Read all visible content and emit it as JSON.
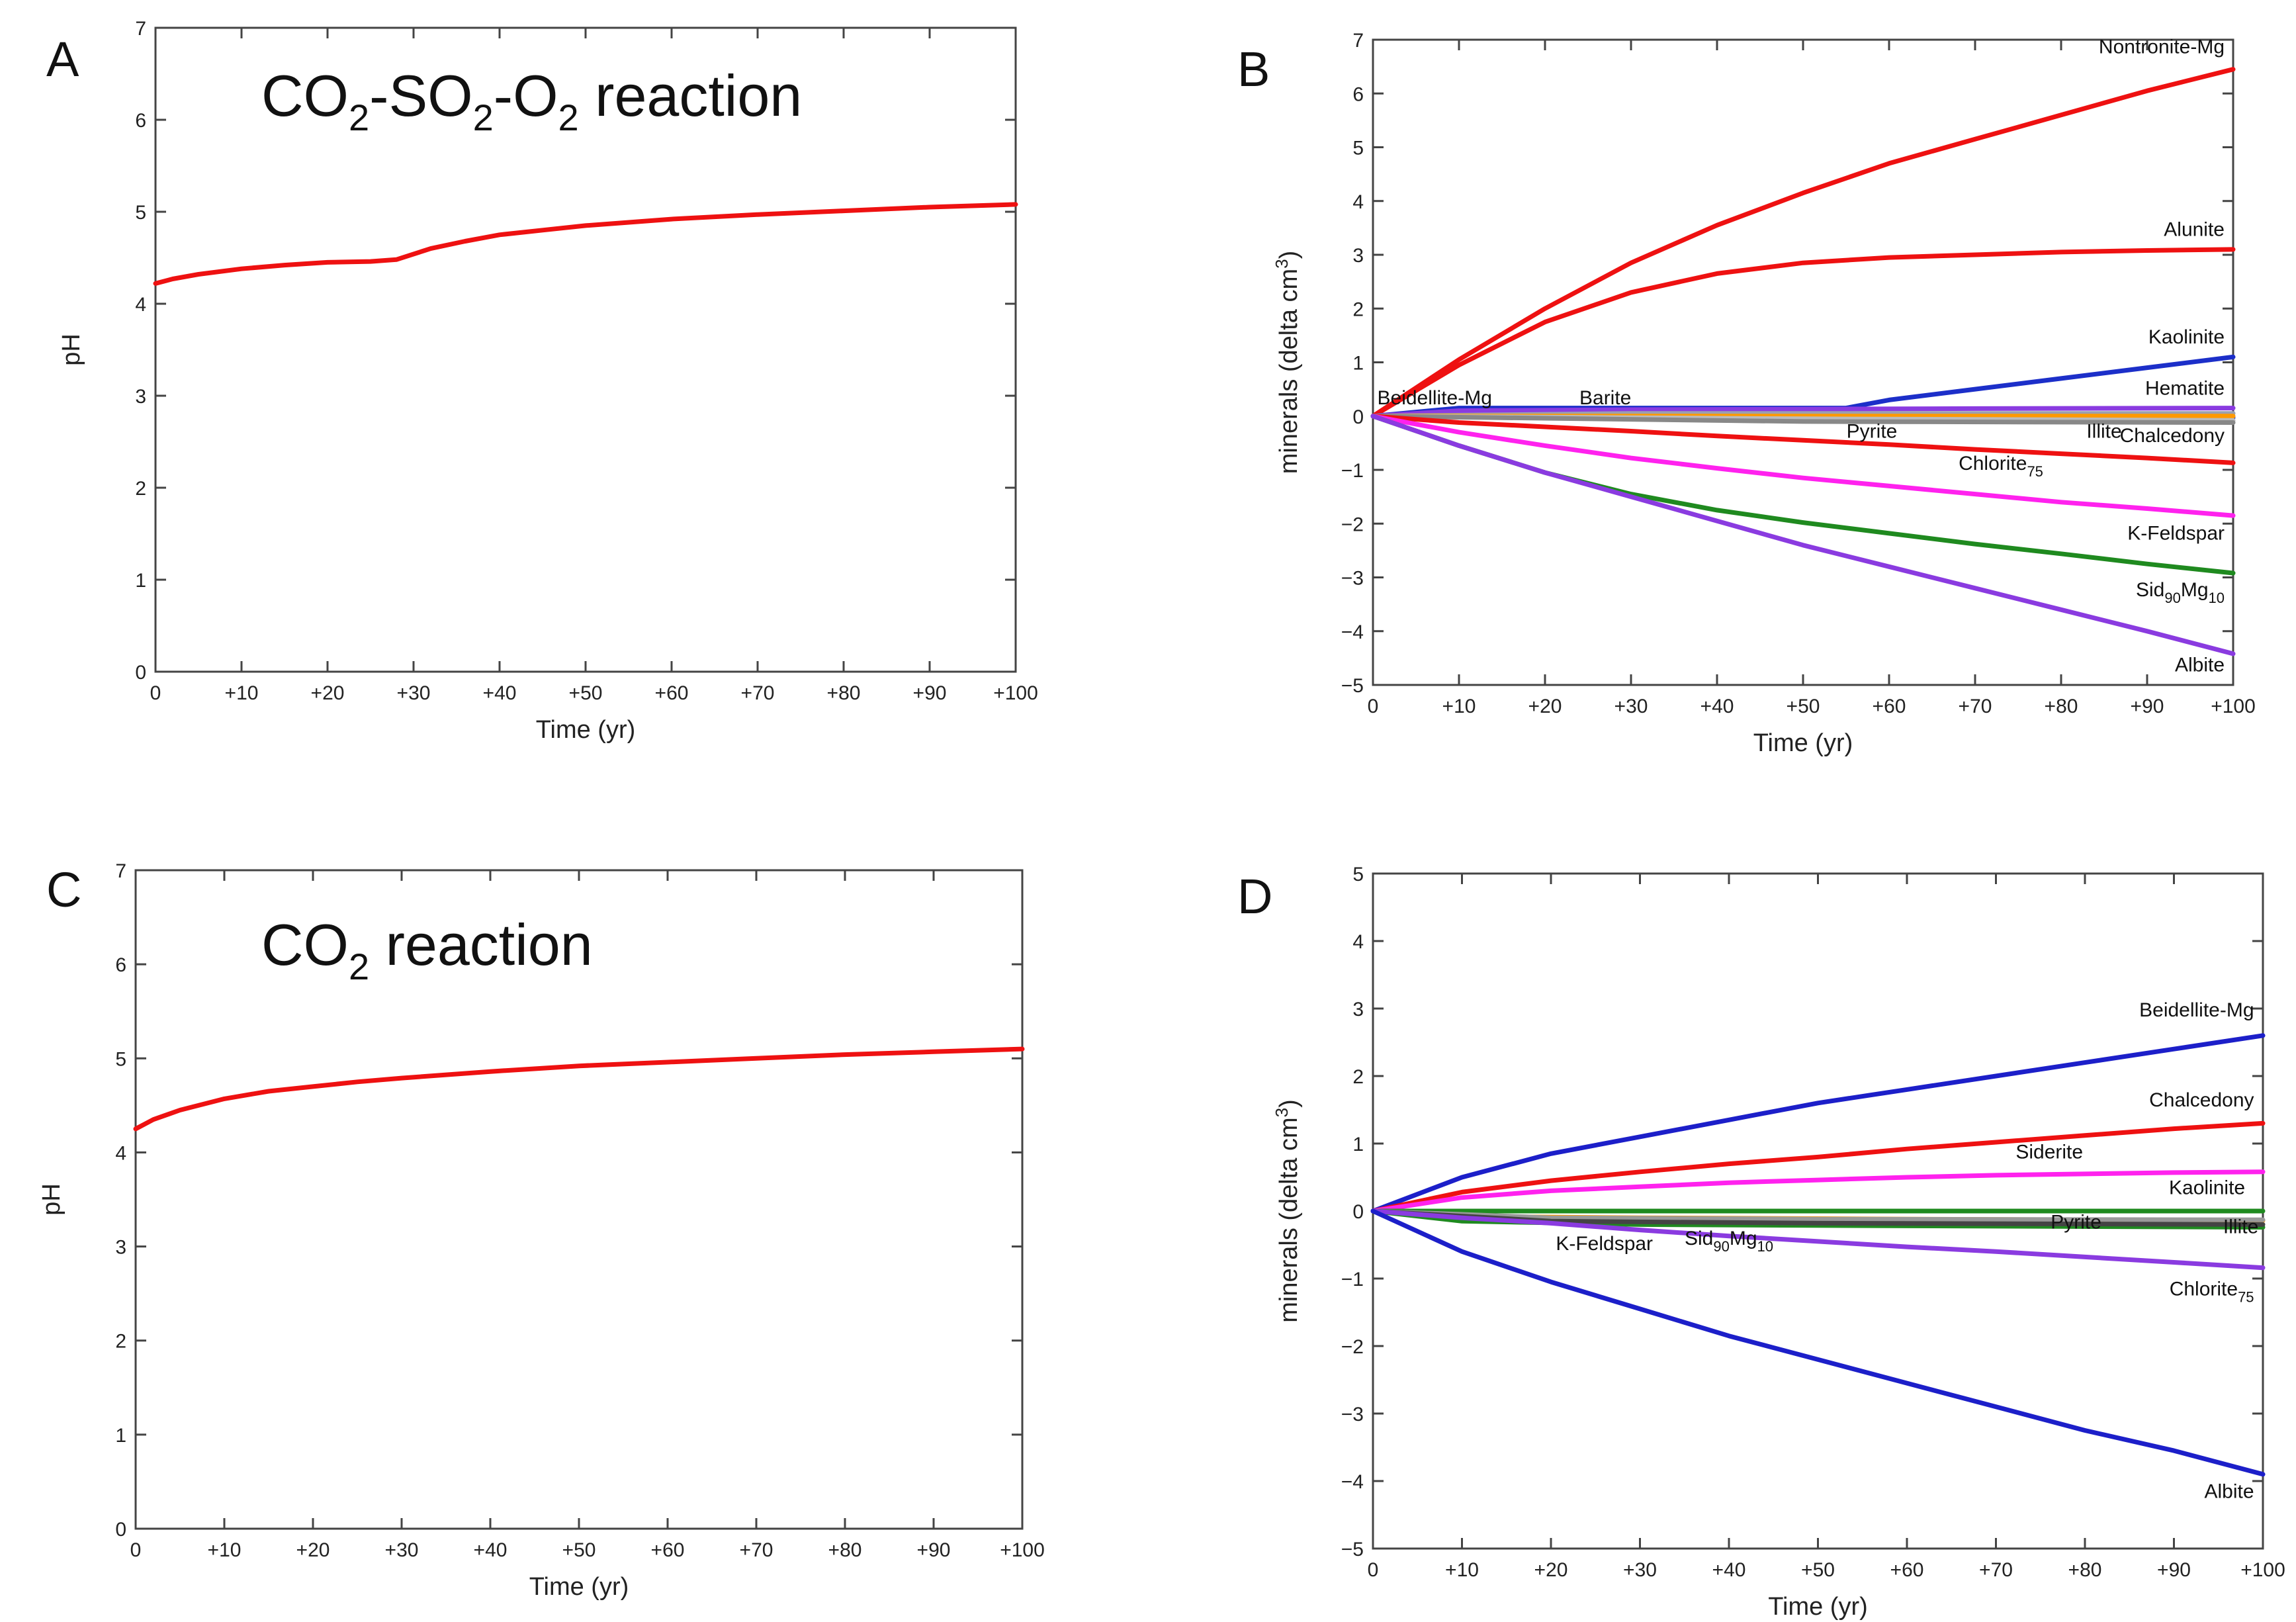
{
  "panels": {
    "A": {
      "letter": "A",
      "reaction_parts": [
        "CO",
        "2",
        "-SO",
        "2",
        "-O",
        "2",
        " reaction"
      ],
      "reaction_title": "CO2-SO2-O2 reaction"
    },
    "B": {
      "letter": "B"
    },
    "C": {
      "letter": "C",
      "reaction_parts": [
        "CO",
        "2",
        " reaction"
      ],
      "reaction_title": "CO2 reaction"
    },
    "D": {
      "letter": "D"
    }
  },
  "chart_data": [
    {
      "id": "A",
      "type": "line",
      "xlabel": "Time (yr)",
      "ylabel": "pH",
      "xlim": [
        0,
        100
      ],
      "ylim": [
        0,
        7
      ],
      "xticks": [
        "0",
        "+10",
        "+20",
        "+30",
        "+40",
        "+50",
        "+60",
        "+70",
        "+80",
        "+90",
        "+100"
      ],
      "yticks": [
        "0",
        "1",
        "2",
        "3",
        "4",
        "5",
        "6",
        "7"
      ],
      "series": [
        {
          "name": "pH",
          "color": "#ee1111",
          "x": [
            0,
            2,
            5,
            10,
            15,
            20,
            25,
            28,
            32,
            36,
            40,
            45,
            50,
            60,
            70,
            80,
            90,
            100
          ],
          "y": [
            4.22,
            4.27,
            4.32,
            4.38,
            4.42,
            4.45,
            4.46,
            4.48,
            4.6,
            4.68,
            4.75,
            4.8,
            4.85,
            4.92,
            4.97,
            5.01,
            5.05,
            5.08
          ]
        }
      ]
    },
    {
      "id": "B",
      "type": "line",
      "xlabel": "Time (yr)",
      "ylabel_main": "minerals (delta cm",
      "ylabel_sup": "3",
      "ylabel_end": ")",
      "xlim": [
        0,
        100
      ],
      "ylim": [
        -5,
        7
      ],
      "xticks": [
        "0",
        "+10",
        "+20",
        "+30",
        "+40",
        "+50",
        "+60",
        "+70",
        "+80",
        "+90",
        "+100"
      ],
      "yticks": [
        "−5",
        "−4",
        "−3",
        "−2",
        "−1",
        "0",
        "1",
        "2",
        "3",
        "4",
        "5",
        "6",
        "7"
      ],
      "series": [
        {
          "name": "Nontronite-Mg",
          "color": "#ee1111",
          "x": [
            0,
            10,
            20,
            30,
            40,
            50,
            60,
            70,
            80,
            90,
            100
          ],
          "y": [
            0,
            1.05,
            2.0,
            2.85,
            3.55,
            4.15,
            4.7,
            5.15,
            5.6,
            6.05,
            6.45
          ]
        },
        {
          "name": "Alunite",
          "color": "#ee1111",
          "x": [
            0,
            10,
            20,
            30,
            40,
            50,
            60,
            70,
            80,
            90,
            100
          ],
          "y": [
            0,
            0.95,
            1.75,
            2.3,
            2.65,
            2.85,
            2.95,
            3.0,
            3.05,
            3.08,
            3.1
          ]
        },
        {
          "name": "Kaolinite",
          "color": "#1c2fc9",
          "x": [
            0,
            10,
            20,
            30,
            40,
            55,
            60,
            70,
            80,
            90,
            100
          ],
          "y": [
            0,
            0.15,
            0.15,
            0.15,
            0.15,
            0.15,
            0.3,
            0.5,
            0.7,
            0.9,
            1.1
          ]
        },
        {
          "name": "Hematite",
          "color": "#8a3be0",
          "x": [
            0,
            10,
            30,
            50,
            70,
            100
          ],
          "y": [
            0,
            0.1,
            0.12,
            0.13,
            0.14,
            0.15
          ]
        },
        {
          "name": "Beidellite-Mg",
          "color": "#9aa0b0",
          "x": [
            0,
            30,
            60,
            100
          ],
          "y": [
            0,
            0.05,
            0.05,
            0.05
          ]
        },
        {
          "name": "Barite",
          "color": "#2a48d0",
          "x": [
            0,
            30,
            60,
            100
          ],
          "y": [
            0,
            -0.02,
            -0.02,
            -0.03
          ]
        },
        {
          "name": "Chalcedony",
          "color": "#ff9900",
          "x": [
            0,
            20,
            50,
            80,
            100
          ],
          "y": [
            0,
            0.0,
            0.0,
            0.0,
            0.0
          ]
        },
        {
          "name": "Pyrite",
          "color": "#bbbbbb",
          "x": [
            0,
            50,
            100
          ],
          "y": [
            0,
            -0.05,
            -0.08
          ]
        },
        {
          "name": "Illite",
          "color": "#888888",
          "x": [
            0,
            50,
            100
          ],
          "y": [
            0,
            -0.1,
            -0.12
          ]
        },
        {
          "name": "Chlorite75",
          "color": "#ee1111",
          "x": [
            0,
            10,
            20,
            30,
            40,
            50,
            60,
            70,
            80,
            90,
            100
          ],
          "y": [
            0,
            -0.12,
            -0.2,
            -0.28,
            -0.37,
            -0.45,
            -0.53,
            -0.62,
            -0.7,
            -0.78,
            -0.87
          ]
        },
        {
          "name": "K-Feldspar",
          "color": "#ff22ee",
          "x": [
            0,
            10,
            20,
            30,
            40,
            50,
            60,
            70,
            80,
            90,
            100
          ],
          "y": [
            0,
            -0.3,
            -0.55,
            -0.78,
            -0.97,
            -1.15,
            -1.3,
            -1.45,
            -1.6,
            -1.72,
            -1.85
          ]
        },
        {
          "name": "Sid90Mg10",
          "color": "#1f8a1f",
          "x": [
            0,
            10,
            20,
            30,
            40,
            50,
            60,
            70,
            80,
            90,
            100
          ],
          "y": [
            0,
            -0.55,
            -1.05,
            -1.45,
            -1.75,
            -1.98,
            -2.18,
            -2.38,
            -2.56,
            -2.75,
            -2.92
          ]
        },
        {
          "name": "Albite",
          "color": "#8a3be0",
          "x": [
            0,
            10,
            20,
            30,
            40,
            50,
            60,
            70,
            80,
            90,
            100
          ],
          "y": [
            0,
            -0.55,
            -1.05,
            -1.5,
            -1.95,
            -2.4,
            -2.8,
            -3.2,
            -3.6,
            -4.0,
            -4.42
          ]
        }
      ],
      "labels": [
        {
          "main": "Nontronite-Mg",
          "sub": "",
          "mid": "",
          "sub2": "",
          "x": 99,
          "y": 6.75,
          "anchor": "end"
        },
        {
          "main": "Alunite",
          "sub": "",
          "mid": "",
          "sub2": "",
          "x": 99,
          "y": 3.35,
          "anchor": "end"
        },
        {
          "main": "Kaolinite",
          "sub": "",
          "mid": "",
          "sub2": "",
          "x": 99,
          "y": 1.35,
          "anchor": "end"
        },
        {
          "main": "Hematite",
          "sub": "",
          "mid": "",
          "sub2": "",
          "x": 99,
          "y": 0.4,
          "anchor": "end"
        },
        {
          "main": "Beidellite-Mg",
          "sub": "",
          "mid": "",
          "sub2": "",
          "x": 0.5,
          "y": 0.22,
          "anchor": "start"
        },
        {
          "main": "Barite",
          "sub": "",
          "mid": "",
          "sub2": "",
          "x": 24,
          "y": 0.22,
          "anchor": "start"
        },
        {
          "main": "Pyrite",
          "sub": "",
          "mid": "",
          "sub2": "",
          "x": 58,
          "y": -0.4,
          "anchor": "middle"
        },
        {
          "main": "Illite",
          "sub": "",
          "mid": "",
          "sub2": "",
          "x": 85,
          "y": -0.4,
          "anchor": "middle"
        },
        {
          "main": "Chalcedony",
          "sub": "",
          "mid": "",
          "sub2": "",
          "x": 99,
          "y": -0.48,
          "anchor": "end"
        },
        {
          "main": "Chlorite",
          "sub": "75",
          "mid": "",
          "sub2": "",
          "x": 73,
          "y": -1.0,
          "anchor": "middle"
        },
        {
          "main": "K-Feldspar",
          "sub": "",
          "mid": "",
          "sub2": "",
          "x": 99,
          "y": -2.3,
          "anchor": "end"
        },
        {
          "main": "Sid",
          "sub": "90",
          "mid": "Mg",
          "sub2": "10",
          "x": 99,
          "y": -3.35,
          "anchor": "end"
        },
        {
          "main": "Albite",
          "sub": "",
          "mid": "",
          "sub2": "",
          "x": 99,
          "y": -4.75,
          "anchor": "end"
        }
      ]
    },
    {
      "id": "C",
      "type": "line",
      "xlabel": "Time (yr)",
      "ylabel": "pH",
      "xlim": [
        0,
        100
      ],
      "ylim": [
        0,
        7
      ],
      "xticks": [
        "0",
        "+10",
        "+20",
        "+30",
        "+40",
        "+50",
        "+60",
        "+70",
        "+80",
        "+90",
        "+100"
      ],
      "yticks": [
        "0",
        "1",
        "2",
        "3",
        "4",
        "5",
        "6",
        "7"
      ],
      "series": [
        {
          "name": "pH",
          "color": "#ee1111",
          "x": [
            0,
            2,
            5,
            10,
            15,
            20,
            25,
            30,
            40,
            50,
            60,
            70,
            80,
            90,
            100
          ],
          "y": [
            4.25,
            4.35,
            4.45,
            4.57,
            4.65,
            4.7,
            4.75,
            4.79,
            4.86,
            4.92,
            4.96,
            5.0,
            5.04,
            5.07,
            5.1
          ]
        }
      ]
    },
    {
      "id": "D",
      "type": "line",
      "xlabel": "Time (yr)",
      "ylabel_main": "minerals (delta cm",
      "ylabel_sup": "3",
      "ylabel_end": ")",
      "xlim": [
        0,
        100
      ],
      "ylim": [
        -5,
        5
      ],
      "xticks": [
        "0",
        "+10",
        "+20",
        "+30",
        "+40",
        "+50",
        "+60",
        "+70",
        "+80",
        "+90",
        "+100"
      ],
      "yticks": [
        "−5",
        "−4",
        "−3",
        "−2",
        "−1",
        "0",
        "1",
        "2",
        "3",
        "4",
        "5"
      ],
      "series": [
        {
          "name": "Beidellite-Mg",
          "color": "#1c1fc9",
          "x": [
            0,
            10,
            20,
            30,
            40,
            50,
            60,
            70,
            80,
            90,
            100
          ],
          "y": [
            0,
            0.5,
            0.85,
            1.1,
            1.35,
            1.6,
            1.8,
            2.0,
            2.2,
            2.4,
            2.6
          ]
        },
        {
          "name": "Chalcedony",
          "color": "#ee1111",
          "x": [
            0,
            10,
            20,
            30,
            40,
            50,
            60,
            70,
            80,
            90,
            100
          ],
          "y": [
            0,
            0.28,
            0.45,
            0.58,
            0.7,
            0.8,
            0.92,
            1.02,
            1.12,
            1.22,
            1.3
          ]
        },
        {
          "name": "Siderite",
          "color": "#ff22ee",
          "x": [
            0,
            10,
            20,
            30,
            40,
            50,
            60,
            70,
            80,
            90,
            100
          ],
          "y": [
            0,
            0.2,
            0.3,
            0.36,
            0.42,
            0.46,
            0.5,
            0.53,
            0.55,
            0.57,
            0.58
          ]
        },
        {
          "name": "Kaolinite",
          "color": "#1f8a1f",
          "x": [
            0,
            10,
            30,
            60,
            100
          ],
          "y": [
            0,
            0.0,
            0.0,
            0.0,
            0.0
          ]
        },
        {
          "name": "Pyrite",
          "color": "#ff9900",
          "x": [
            0,
            10,
            30,
            60,
            100
          ],
          "y": [
            0,
            -0.08,
            -0.1,
            -0.12,
            -0.14
          ]
        },
        {
          "name": "Illite",
          "color": "#1f8a1f",
          "x": [
            0,
            10,
            30,
            60,
            100
          ],
          "y": [
            0,
            -0.15,
            -0.2,
            -0.22,
            -0.24
          ]
        },
        {
          "name": "K-Feldspar",
          "color": "#999999",
          "x": [
            0,
            20,
            50,
            100
          ],
          "y": [
            0,
            -0.1,
            -0.12,
            -0.13
          ]
        },
        {
          "name": "Sid90Mg10",
          "color": "#444444",
          "x": [
            0,
            20,
            50,
            100
          ],
          "y": [
            0,
            -0.15,
            -0.18,
            -0.2
          ]
        },
        {
          "name": "Chlorite75",
          "color": "#8a3be0",
          "x": [
            0,
            10,
            20,
            30,
            40,
            50,
            60,
            70,
            80,
            90,
            100
          ],
          "y": [
            0,
            -0.1,
            -0.18,
            -0.28,
            -0.37,
            -0.45,
            -0.53,
            -0.6,
            -0.68,
            -0.76,
            -0.84
          ]
        },
        {
          "name": "Albite",
          "color": "#1c1fc9",
          "x": [
            0,
            10,
            20,
            30,
            40,
            50,
            60,
            70,
            80,
            90,
            100
          ],
          "y": [
            0,
            -0.6,
            -1.05,
            -1.45,
            -1.85,
            -2.2,
            -2.55,
            -2.9,
            -3.25,
            -3.55,
            -3.9
          ]
        }
      ],
      "labels": [
        {
          "main": "Beidellite-Mg",
          "sub": "",
          "mid": "",
          "sub2": "",
          "x": 99,
          "y": 2.88,
          "anchor": "end"
        },
        {
          "main": "Chalcedony",
          "sub": "",
          "mid": "",
          "sub2": "",
          "x": 99,
          "y": 1.55,
          "anchor": "end"
        },
        {
          "main": "Siderite",
          "sub": "",
          "mid": "",
          "sub2": "",
          "x": 76,
          "y": 0.78,
          "anchor": "middle"
        },
        {
          "main": "Kaolinite",
          "sub": "",
          "mid": "",
          "sub2": "",
          "x": 98,
          "y": 0.25,
          "anchor": "end"
        },
        {
          "main": "Pyrite",
          "sub": "",
          "mid": "",
          "sub2": "",
          "x": 79,
          "y": -0.26,
          "anchor": "middle"
        },
        {
          "main": "Illite",
          "sub": "",
          "mid": "",
          "sub2": "",
          "x": 99.5,
          "y": -0.33,
          "anchor": "end"
        },
        {
          "main": "K-Feldspar",
          "sub": "",
          "mid": "",
          "sub2": "",
          "x": 26,
          "y": -0.58,
          "anchor": "middle"
        },
        {
          "main": "Sid",
          "sub": "90",
          "mid": "Mg",
          "sub2": "10",
          "x": 40,
          "y": -0.5,
          "anchor": "middle"
        },
        {
          "main": "Chlorite",
          "sub": "75",
          "mid": "",
          "sub2": "",
          "x": 99,
          "y": -1.25,
          "anchor": "end"
        },
        {
          "main": "Albite",
          "sub": "",
          "mid": "",
          "sub2": "",
          "x": 99,
          "y": -4.25,
          "anchor": "end"
        }
      ]
    }
  ]
}
